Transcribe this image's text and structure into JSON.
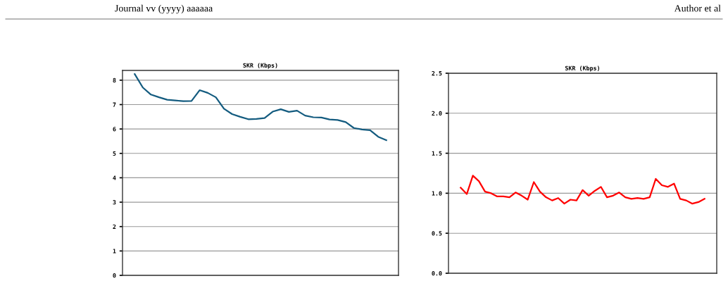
{
  "chart_data": [
    {
      "type": "line",
      "title": "SKR (Kbps)",
      "categories": [
        null,
        null,
        null,
        null,
        null,
        null,
        null,
        null,
        null,
        null,
        null,
        null,
        null,
        null,
        null,
        null,
        null,
        null,
        null,
        null,
        null,
        null,
        null,
        null,
        null,
        null,
        null,
        null,
        null,
        null,
        null,
        null
      ],
      "series": [
        {
          "color": "#135b7f",
          "values": [
            8.25,
            7.7,
            7.41,
            7.3,
            7.2,
            7.17,
            7.14,
            7.15,
            7.59,
            7.48,
            7.3,
            6.83,
            6.61,
            6.5,
            6.4,
            6.41,
            6.45,
            6.71,
            6.81,
            6.7,
            6.75,
            6.55,
            6.48,
            6.47,
            6.39,
            6.37,
            6.28,
            6.04,
            5.98,
            5.95,
            5.68,
            5.54
          ]
        }
      ],
      "ylim": [
        0,
        8.4
      ],
      "yticks": [
        0,
        1,
        2,
        3,
        4,
        5,
        6,
        7,
        8
      ],
      "grid": "y",
      "marker": "none",
      "line_style": "solid",
      "annotations": [
        "Journal vv (yyyy) aaaaaa",
        "Author et al"
      ]
    },
    {
      "type": "line",
      "title": "SKR (Kbps)",
      "categories": [
        null,
        null,
        null,
        null,
        null,
        null,
        null,
        null,
        null,
        null,
        null,
        null,
        null,
        null,
        null,
        null,
        null,
        null,
        null,
        null,
        null,
        null,
        null,
        null,
        null,
        null,
        null,
        null,
        null,
        null,
        null,
        null,
        null,
        null,
        null,
        null,
        null,
        null,
        null,
        null,
        null
      ],
      "series": [
        {
          "color": "#ff0000",
          "values": [
            1.07,
            0.99,
            1.22,
            1.15,
            1.02,
            1.0,
            0.96,
            0.96,
            0.95,
            1.01,
            0.97,
            0.92,
            1.14,
            1.02,
            0.95,
            0.91,
            0.94,
            0.87,
            0.92,
            0.91,
            1.04,
            0.97,
            1.03,
            1.08,
            0.95,
            0.97,
            1.01,
            0.95,
            0.93,
            0.94,
            0.93,
            0.95,
            1.18,
            1.1,
            1.08,
            1.12,
            0.93,
            0.91,
            0.87,
            0.89,
            0.93
          ]
        }
      ],
      "ylim": [
        0,
        2.5
      ],
      "yticks": [
        {
          "value": 0,
          "label": "0.0"
        },
        {
          "value": 0.5,
          "label": "0.5"
        },
        {
          "value": 1,
          "label": "1.0"
        },
        {
          "value": 1.5,
          "label": "1.5"
        },
        {
          "value": 2,
          "label": "2.0"
        },
        {
          "value": 2.5,
          "label": "2.5"
        }
      ],
      "grid": "y",
      "marker": "none",
      "line_style": "solid"
    }
  ]
}
